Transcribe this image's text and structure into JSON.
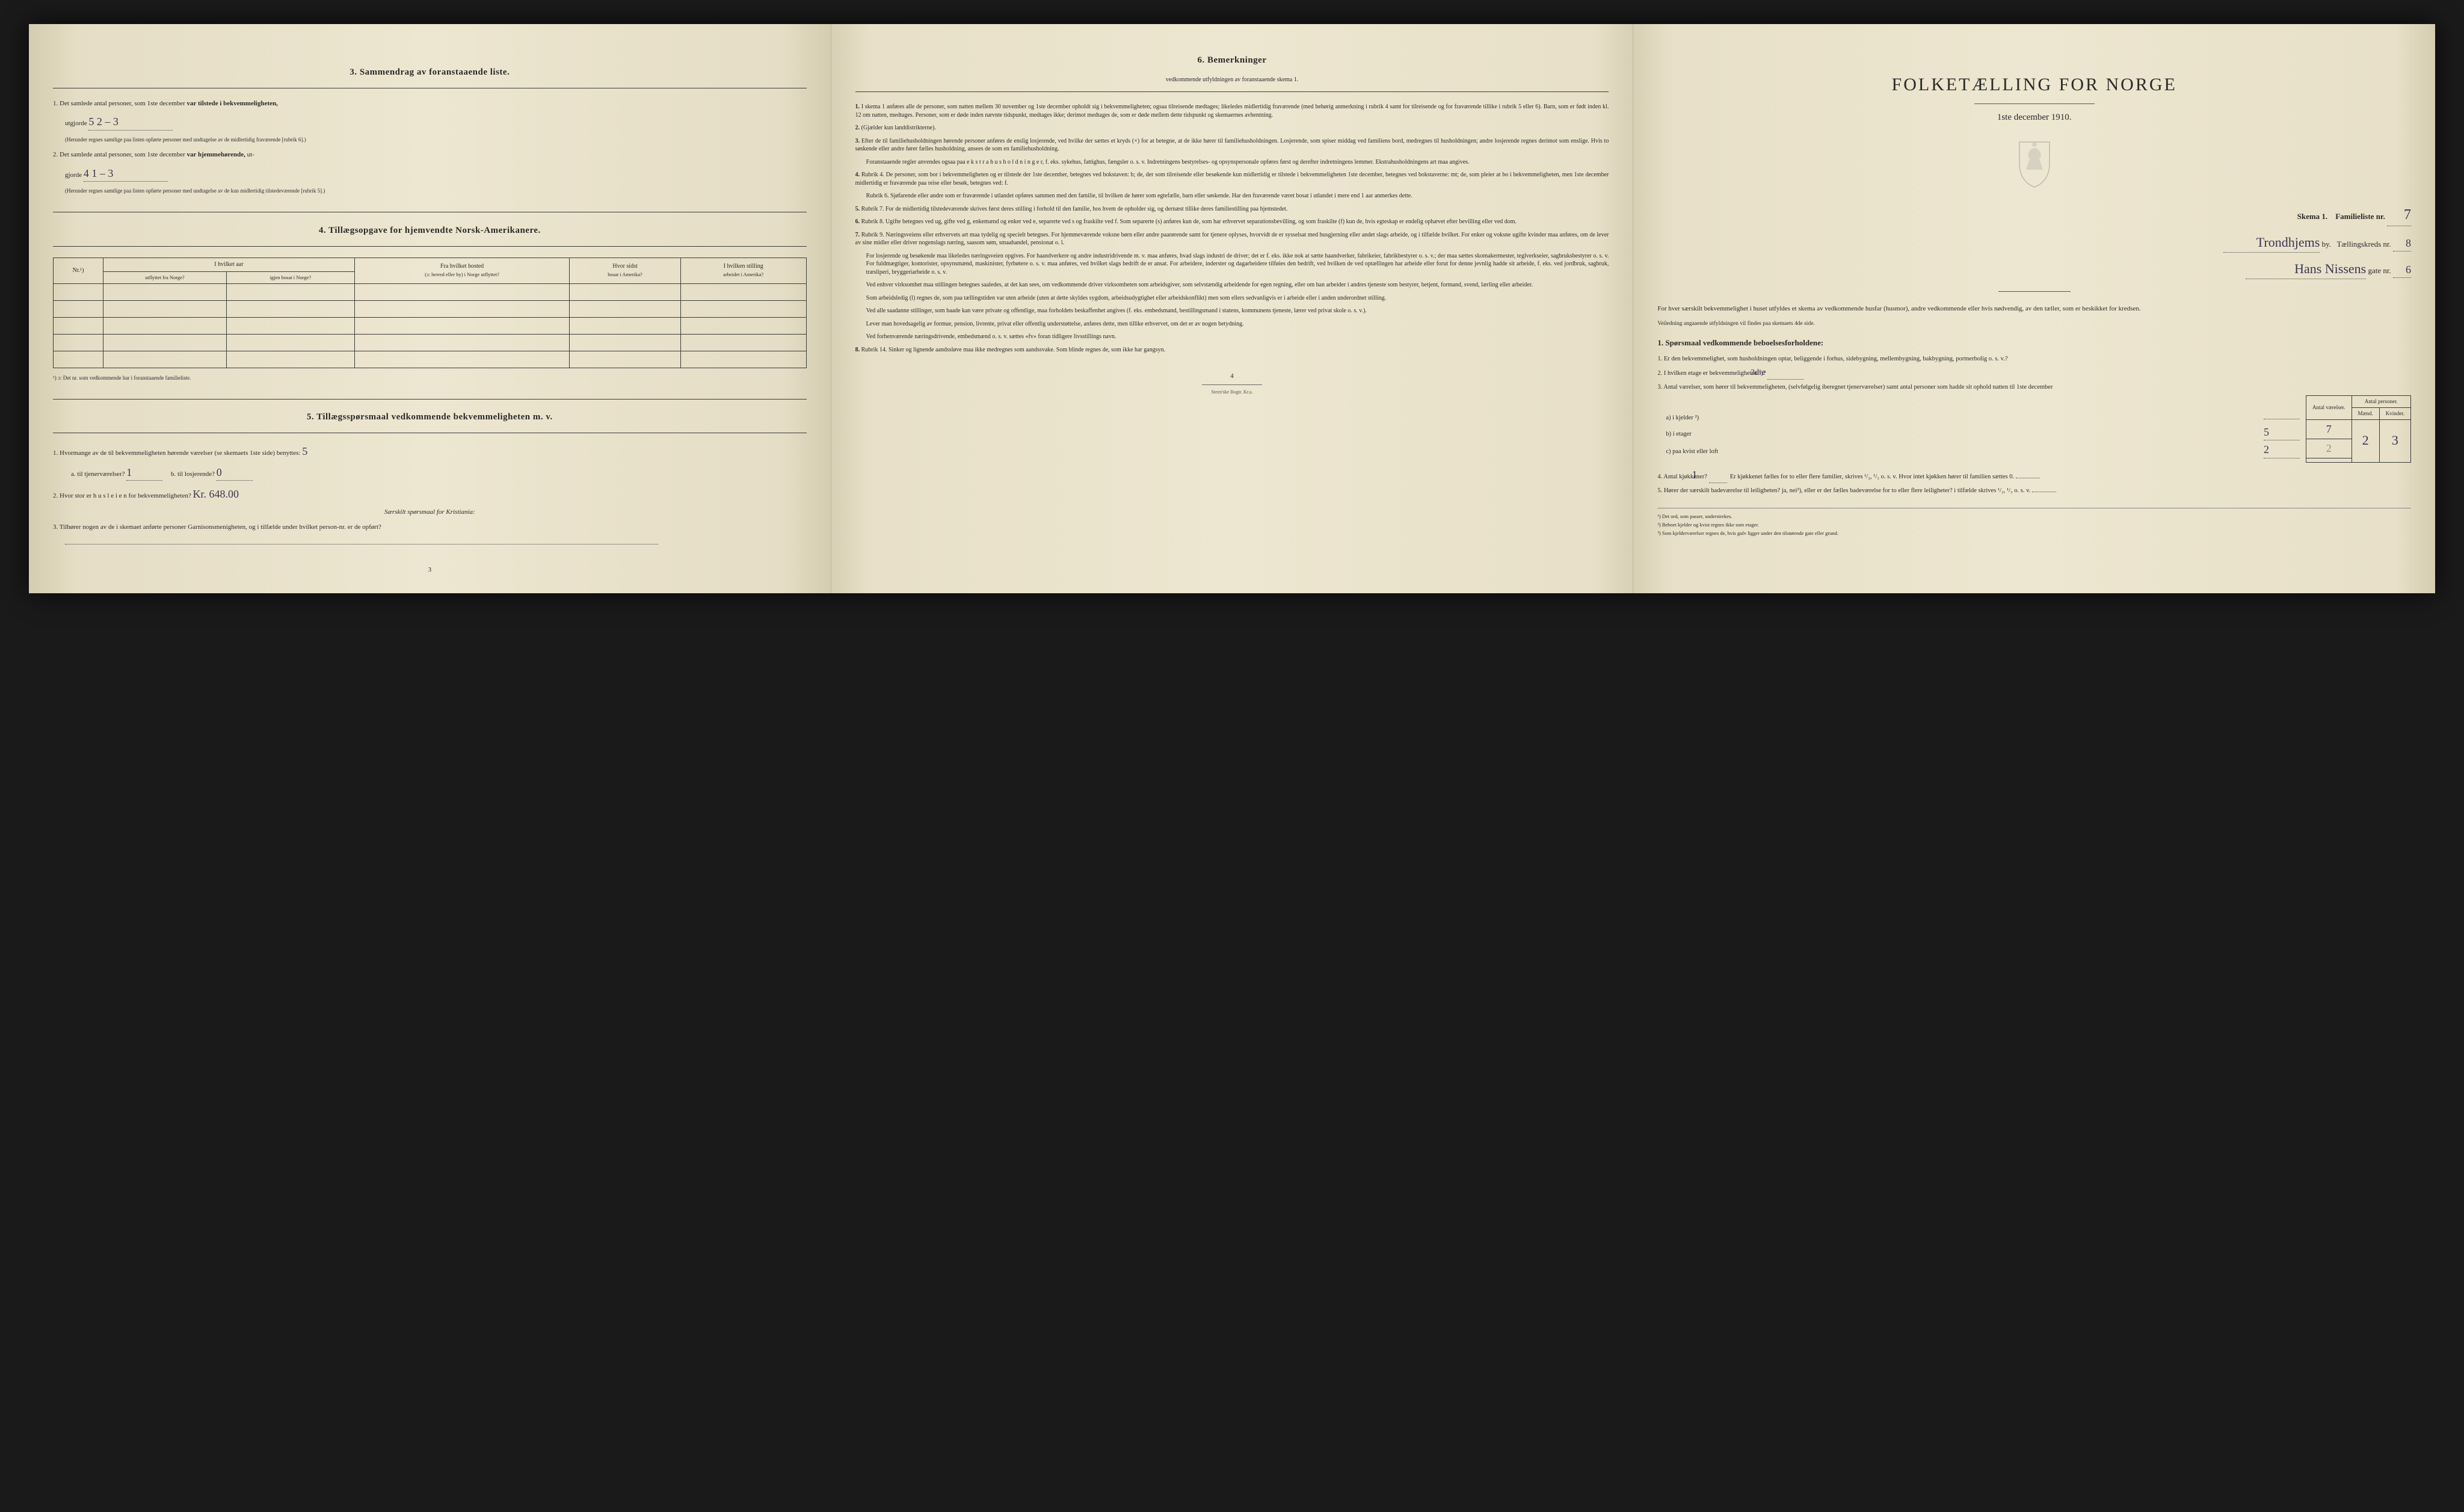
{
  "colors": {
    "page_bg": "#ede6d0",
    "page_edge": "#d5cdb0",
    "text": "#2a2a2a",
    "rule": "#3a3a3a",
    "handwriting": "#3a3555",
    "body_bg": "#1a1a1a"
  },
  "typography": {
    "body_family": "Georgia, 'Times New Roman', serif",
    "handwriting_family": "'Brush Script MT', cursive",
    "heading_size_pt": 15,
    "body_size_pt": 11,
    "small_size_pt": 9,
    "title_size_pt": 30
  },
  "page_left": {
    "section3": {
      "heading": "3.   Sammendrag av foranstaaende liste.",
      "item1_prefix": "1.  Det samlede antal personer, som 1ste december ",
      "item1_bold": "var tilstede i bekvemmeligheten,",
      "item1_line2_prefix": "utgjorde",
      "item1_value": "5     2 – 3",
      "item1_note": "(Herunder regnes samtlige paa listen opførte personer med undtagelse av de midlertidig fraværende [rubrik 6].)",
      "item2_prefix": "2.  Det samlede antal personer, som 1ste december ",
      "item2_bold": "var hjemmehørende,",
      "item2_suffix": " ut-",
      "item2_line2_prefix": "gjorde",
      "item2_value": "4     1 – 3",
      "item2_note": "(Herunder regnes samtlige paa listen opførte personer med undtagelse av de kun midlertidig tilstedeværende [rubrik 5].)"
    },
    "section4": {
      "heading": "4.   Tillægsopgave for hjemvendte Norsk-Amerikanere.",
      "table": {
        "headers": {
          "col1": "Nr.¹)",
          "col2_top": "I hvilket aar",
          "col2a": "utflyttet fra Norge?",
          "col2b": "igjen bosat i Norge?",
          "col3_top": "Fra hvilket bosted",
          "col3_sub": "(ɔ: herred eller by) i Norge utflyttet?",
          "col4_top": "Hvor sidst",
          "col4_sub": "bosat i Amerika?",
          "col5_top": "I hvilken stilling",
          "col5_sub": "arbeidet i Amerika?"
        },
        "empty_rows": 5
      },
      "footnote": "¹) ɔ: Det nr. som vedkommende har i foranstaaende familieliste."
    },
    "section5": {
      "heading": "5.   Tillægsspørsmaal vedkommende bekvemmeligheten m. v.",
      "item1": "1.  Hvormange av de til bekvemmeligheten hørende værelser (se skemaets 1ste side) benyttes:",
      "item1_value": "5",
      "item1a_label": "a.  til tjenerværelser?",
      "item1a_value": "1",
      "item1b_label": "b.  til losjerende?",
      "item1b_value": "0",
      "item2": "2.  Hvor stor er h u s l e i e n  for bekvemmeligheten?",
      "item2_value": "Kr. 648.00",
      "item2_note": "Særskilt spørsmaal for Kristiania:",
      "item3": "3.  Tilhører nogen av de i skemaet anførte personer Garnisonsmenigheten, og i tilfælde under hvilket person-nr. er de opført?"
    },
    "page_num": "3"
  },
  "page_center": {
    "heading": "6.   Bemerkninger",
    "subheading": "vedkommende utfyldningen av foranstaaende skema 1.",
    "items": [
      {
        "n": "1.",
        "text": "I skema 1 anføres alle de personer, som natten mellem 30 november og 1ste december opholdt sig i bekvemmeligheten; ogsaa tilreisende medtages; likeledes midlertidig fraværende (med behørig anmerkning i rubrik 4 samt for tilreisende og for fraværende tillike i rubrik 5 eller 6). Barn, som er født inden kl. 12 om natten, medtages. Personer, som er døde inden nævnte tidspunkt, medtages ikke; derimot medtages de, som er døde mellem dette tidspunkt og skemaernes avhentning."
      },
      {
        "n": "2.",
        "text": "(Gjælder kun landdistrikterne)."
      },
      {
        "n": "3.",
        "text": "Efter de til familiehusholdningen hørende personer anføres de enslig losjerende, ved hvilke der sættes et kryds (×) for at betegne, at de ikke hører til familiehusholdningen. Losjerende, som spiser middag ved familiens bord, medregnes til husholdningen; andre losjerende regnes derimot som enslige. Hvis to søskende eller andre fører fælles husholdning, ansees de som en familiehusholdning.",
        "extra": "Foranstaaende regler anvendes ogsaa paa e k s t r a h u s h o l d n i n g e r, f. eks. sykehus, fattighus, fængsler o. s. v. Indretningens bestyrelses- og opsynspersonale opføres først og derefter indretningens lemmer. Ekstrahusholdningens art maa angives."
      },
      {
        "n": "4.",
        "text": "Rubrik 4. De personer, som bor i bekvemmeligheten og er tilstede der 1ste december, betegnes ved bokstaven: b; de, der som tilreisende eller besøkende kun midlertidig er tilstede i bekvemmeligheten 1ste december, betegnes ved bokstaverne: mt; de, som pleier at bo i bekvemmeligheten, men 1ste december midlertidig er fraværende paa reise eller besøk, betegnes ved: f.",
        "extra": "Rubrik 6. Sjøfarende eller andre som er fraværende i utlandet opføres sammen med den familie, til hvilken de hører som egtefælle, barn eller søskende. Har den fraværende været bosat i utlandet i mere end 1 aar anmerkes dette."
      },
      {
        "n": "5.",
        "text": "Rubrik 7. For de midlertidig tilstedeværende skrives først deres stilling i forhold til den familie, hos hvem de opholder sig, og dernæst tillike deres familiestilling paa hjemstedet."
      },
      {
        "n": "6.",
        "text": "Rubrik 8. Ugifte betegnes ved ug, gifte ved g, enkemænd og enker ved e, separerte ved s og fraskilte ved f. Som separerte (s) anføres kun de, som har erhvervet separationsbevilling, og som fraskilte (f) kun de, hvis egteskap er endelig ophævet efter bevilling eller ved dom."
      },
      {
        "n": "7.",
        "text": "Rubrik 9. Næringsveiens eller erhvervets art maa tydelig og specielt betegnes. For hjemmeværende voksne børn eller andre paarørende samt for tjenere oplyses, hvorvidt de er sysselsat med husgjerning eller andet slags arbeide, og i tilfælde hvilket. For enker og voksne ugifte kvinder maa anføres, om de lever av sine midler eller driver nogenslags næring, saasom søm, smaahandel, pensionat o. l.",
        "extra": "For losjerende og besøkende maa likeledes næringsveien opgives. For haandverkere og andre industridrivende m. v. maa anføres, hvad slags industri de driver; det er f. eks. ikke nok at sætte haandverker, fabrikeier, fabrikbestyrer o. s. v.; der maa sættes skomakermester, teglverkseier, sagbruksbestyrer o. s. v. For fuldmægtiger, kontorister, opsynsmænd, maskinister, fyrbøtere o. s. v. maa anføres, ved hvilket slags bedrift de er ansat. For arbeidere, inderster og dagarbeidere tilføies den bedrift, ved hvilken de ved optællingen har arbeide eller forut for denne jevnlig hadde sit arbeide, f. eks. ved jordbruk, sagbruk, træsliperi, bryggeriarbeide o. s. v.",
        "extra2": "Ved enhver virksomhet maa stillingen betegnes saaledes, at det kan sees, om vedkommende driver virksomheten som arbeidsgiver, som selvstændig arbeidende for egen regning, eller om han arbeider i andres tjeneste som bestyrer, betjent, formand, svend, lærling eller arbeider.",
        "extra3": "Som arbeidsledig (l) regnes de, som paa tællingstiden var uten arbeide (uten at dette skyldes sygdom, arbeidsudygtighet eller arbeidskonflikt) men som ellers sedvanligvis er i arbeide eller i anden underordnet stilling.",
        "extra4": "Ved alle saadanne stillinger, som baade kan være private og offentlige, maa forholdets beskaffenhet angives (f. eks. embedsmand, bestillingsmand i statens, kommunens tjeneste, lærer ved privat skole o. s. v.).",
        "extra5": "Lever man hovedsagelig av formue, pension, livrente, privat eller offentlig understøttelse, anføres dette, men tillike erhvervet, om det er av nogen betydning.",
        "extra6": "Ved forhenværende næringsdrivende, embedsmænd o. s. v. sættes «fv» foran tidligere livsstillings navn."
      },
      {
        "n": "8.",
        "text": "Rubrik 14. Sinker og lignende aandssløve maa ikke medregnes som aandssvake. Som blinde regnes de, som ikke har gangsyn."
      }
    ],
    "page_num": "4",
    "printer": "Steen'ske Bogtr.   Kr.a."
  },
  "page_right": {
    "title": "FOLKETÆLLING FOR NORGE",
    "date": "1ste december 1910.",
    "schema_label": "Skema 1.",
    "familieliste_label": "Familieliste nr.",
    "familieliste_value": "7",
    "by_label": "by.",
    "by_value": "Trondhjems",
    "kreds_label": "Tællingskreds nr.",
    "kreds_value": "8",
    "gate_value": "Hans Nissens",
    "gate_label": "gate nr.",
    "gate_nr_value": "6",
    "intro": "For hver særskilt bekvemmelighet i huset utfyldes et skema av vedkommende husfar (husmor), andre vedkommende eller hvis nødvendig, av den tæller, som er beskikket for kredsen.",
    "intro_small": "Veiledning angaaende utfyldningen vil findes paa skemaets 4de side.",
    "q1_heading": "1.   Spørsmaal vedkommende beboelsesforholdene:",
    "q1_1": "1.  Er den bekvemmelighet, som husholdningen optar, beliggende i forhus, sidebygning, mellembygning, bakbygning, portnerbolig o. s. v.?",
    "q1_2": "2.  I hvilken etage er bekvemmeligheten ¹)?",
    "q1_2_value": "3die",
    "q1_3": "3.  Antal værelser, som hører til bekvemmeligheten, (selvfølgelig iberegnet tjenerværelser) samt antal personer som hadde sit ophold natten til 1ste december",
    "table": {
      "head1": "Antal værelser.",
      "head2": "Antal personer.",
      "head2a": "Mænd.",
      "head2b": "Kvinder.",
      "rows": [
        {
          "label": "a) i kjelder ²)",
          "v1": "",
          "m": "",
          "k": ""
        },
        {
          "label": "b) i etager",
          "v1": "5",
          "m": "2",
          "k": "3"
        },
        {
          "label": "c) paa kvist eller loft",
          "v1": "2",
          "m": "",
          "k": ""
        }
      ],
      "col_widths": [
        "auto",
        "60px",
        "60px",
        "60px"
      ]
    },
    "sum_mark_a": "7",
    "sum_mark_b": "2",
    "q1_4": "4.  Antal kjøkkener?",
    "q1_4_value": "1",
    "q1_4_rest": "Er kjøkkenet fælles for to eller flere familier, skrives ¹/₂, ¹/₃ o. s. v.  Hvor intet kjøkken hører til familien sættes 0.",
    "q1_5": "5.  Hører der særskilt badeværelse til leiligheten?  ja, nei³), eller er der fælles badeværelse for to eller flere leiligheter? i tilfælde skrives ¹/₂, ¹/₃ o. s. v.",
    "q1_5_value": "",
    "footnotes": [
      "¹)  Det ord, som passer, understrekes.",
      "²)  Beboet kjelder og kvist regnes ikke som etager.",
      "³)  Som kjelderværelser regnes de, hvis gulv ligger under den tilstøtende gate eller grund."
    ]
  }
}
